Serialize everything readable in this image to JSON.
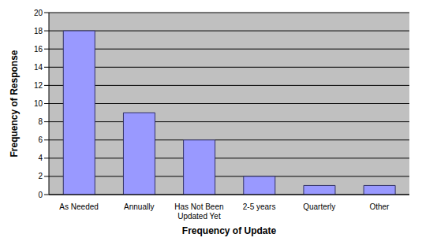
{
  "chart_data": {
    "type": "bar",
    "categories": [
      "As Needed",
      "Annually",
      "Has Not Been Updated Yet",
      "2-5 years",
      "Quarterly",
      "Other"
    ],
    "values": [
      18,
      9,
      6,
      2,
      1,
      1
    ],
    "color": "#9999ff",
    "x_label": "Frequency of Update",
    "y_label": "Frequency of Response",
    "ylim": [
      0,
      20
    ],
    "yticks": [
      0,
      2,
      4,
      6,
      8,
      10,
      12,
      14,
      16,
      18,
      20
    ],
    "grid": true
  }
}
